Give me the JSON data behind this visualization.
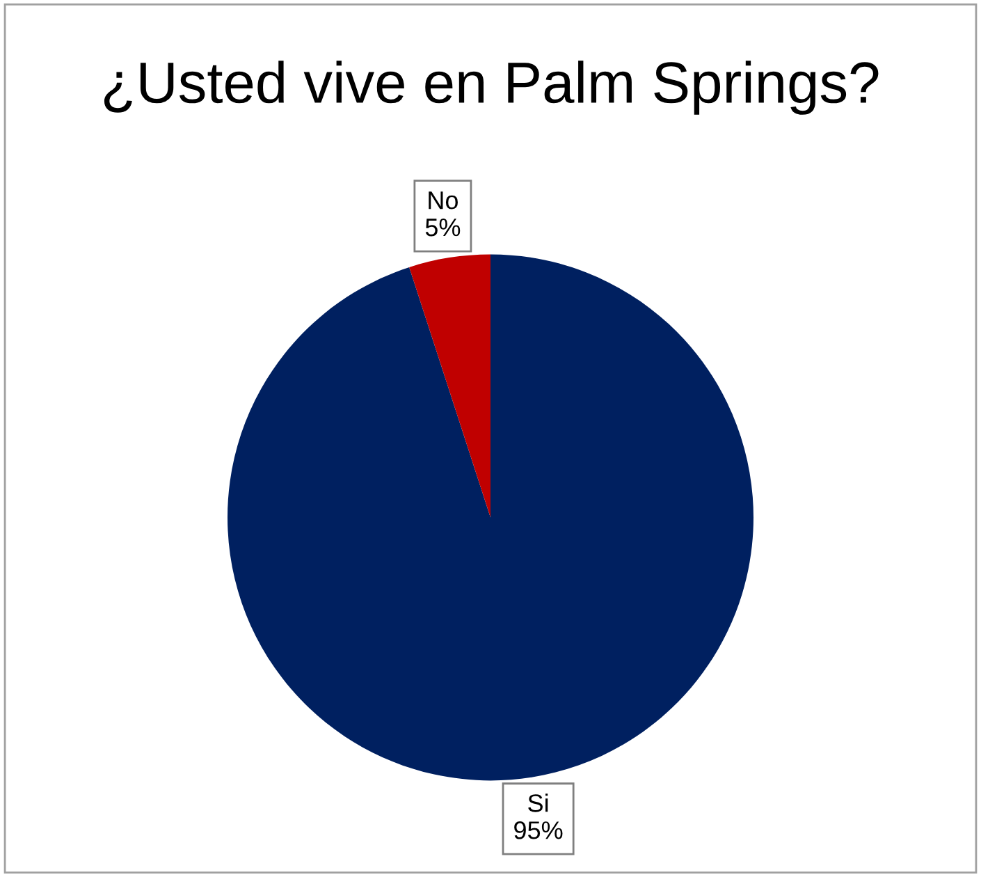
{
  "chart_data": {
    "type": "pie",
    "title": "¿Usted vive en Palm Springs?",
    "categories": [
      "Si",
      "No"
    ],
    "values": [
      95,
      5
    ],
    "colors": [
      "#002060",
      "#c00000"
    ],
    "value_labels": [
      "95%",
      "5%"
    ],
    "legend": false
  }
}
